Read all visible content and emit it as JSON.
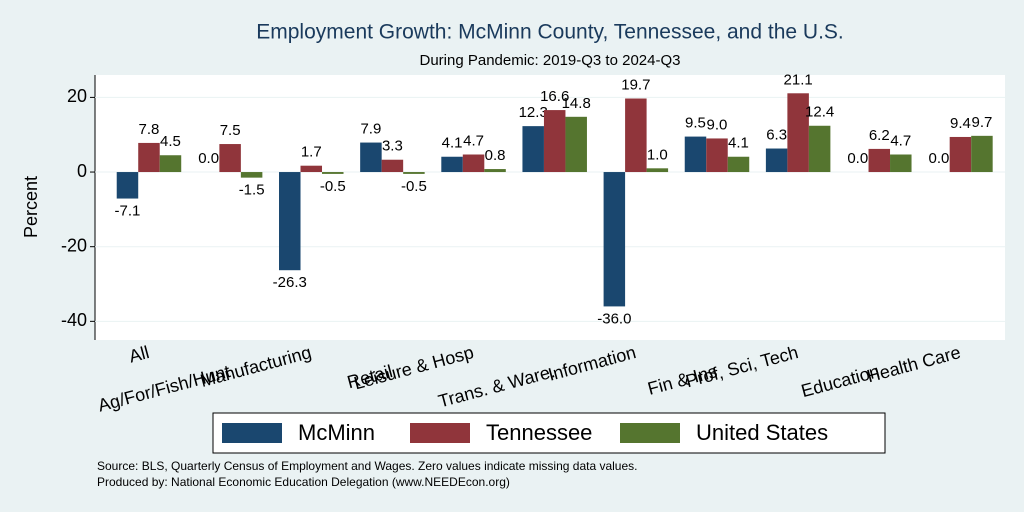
{
  "chart_data": {
    "type": "bar",
    "title": "Employment Growth: McMinn County, Tennessee, and the U.S.",
    "subtitle": "During Pandemic: 2019-Q3 to 2024-Q3",
    "y_label": "Percent",
    "notes": [
      "Source: BLS, Quarterly Census of Employment and Wages. Zero values indicate missing data values.",
      "Produced by: National Economic Education Delegation (www.NEEDEcon.org)"
    ],
    "categories": [
      "All",
      "Ag/For/Fish/Hunt",
      "Manufacturing",
      "Retail",
      "Leisure & Hosp",
      "Trans. & Ware.",
      "Information",
      "Fin & Ins",
      "Prof, Sci, Tech",
      "Education",
      "Health Care"
    ],
    "series": [
      {
        "name": "McMinn",
        "color": "#1a476f",
        "values": [
          -7.1,
          0.0,
          -26.3,
          7.9,
          4.1,
          12.3,
          -36.0,
          9.5,
          6.3,
          0.0,
          0.0
        ],
        "value_labels": [
          "-7.1",
          "0.0",
          "-26.3",
          "7.9",
          "4.1",
          "12.3",
          "-36.0",
          "9.5",
          "6.3",
          "0.0",
          "0.0"
        ]
      },
      {
        "name": "Tennessee",
        "color": "#90353b",
        "values": [
          7.8,
          7.5,
          1.7,
          3.3,
          4.7,
          16.6,
          19.7,
          9.0,
          21.1,
          6.2,
          9.4
        ],
        "value_labels": [
          "7.8",
          "7.5",
          "1.7",
          "3.3",
          "4.7",
          "16.6",
          "19.7",
          "9.0",
          "21.1",
          "6.2",
          "9.4"
        ]
      },
      {
        "name": "United States",
        "color": "#55752f",
        "values": [
          4.5,
          -1.5,
          -0.5,
          -0.5,
          0.8,
          14.8,
          1.0,
          4.1,
          12.4,
          4.7,
          9.7
        ],
        "value_labels": [
          "4.5",
          "-1.5",
          "-0.5",
          "-0.5",
          "0.8",
          "14.8",
          "1.0",
          "4.1",
          "12.4",
          "4.7",
          "9.7"
        ]
      }
    ],
    "ylim": [
      -45,
      26
    ],
    "yticks": [
      -40,
      -20,
      0,
      20
    ],
    "grid": true
  }
}
